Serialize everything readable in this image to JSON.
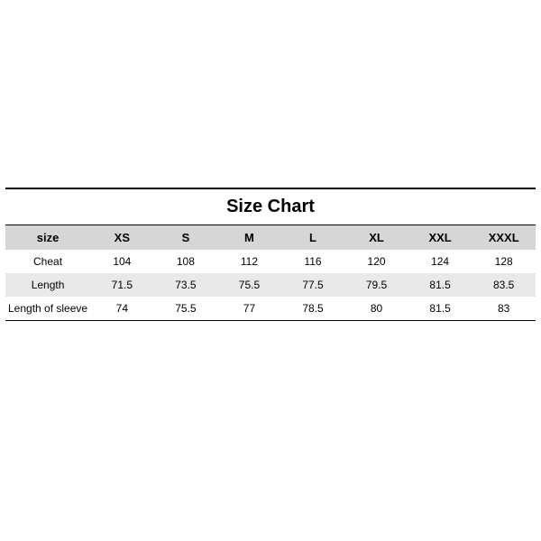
{
  "size_chart": {
    "type": "table",
    "title": "Size Chart",
    "title_fontsize": 20,
    "title_fontweight": 700,
    "header_label": "size",
    "columns": [
      "XS",
      "S",
      "M",
      "L",
      "XL",
      "XXL",
      "XXXL"
    ],
    "rows": [
      {
        "label": "Cheat",
        "values": [
          "104",
          "108",
          "112",
          "116",
          "120",
          "124",
          "128"
        ]
      },
      {
        "label": "Length",
        "values": [
          "71.5",
          "73.5",
          "75.5",
          "77.5",
          "79.5",
          "81.5",
          "83.5"
        ]
      },
      {
        "label": "Length of sleeve",
        "values": [
          "74",
          "75.5",
          "77",
          "78.5",
          "80",
          "81.5",
          "83"
        ]
      }
    ],
    "colors": {
      "background": "#ffffff",
      "header_bg": "#d6d6d6",
      "row_alt_bg": "#e9e9e9",
      "border": "#000000",
      "text": "#000000"
    },
    "fontsize_header": 13,
    "fontsize_body": 12,
    "column_widths_pct": {
      "label": 16,
      "value": 12
    }
  }
}
